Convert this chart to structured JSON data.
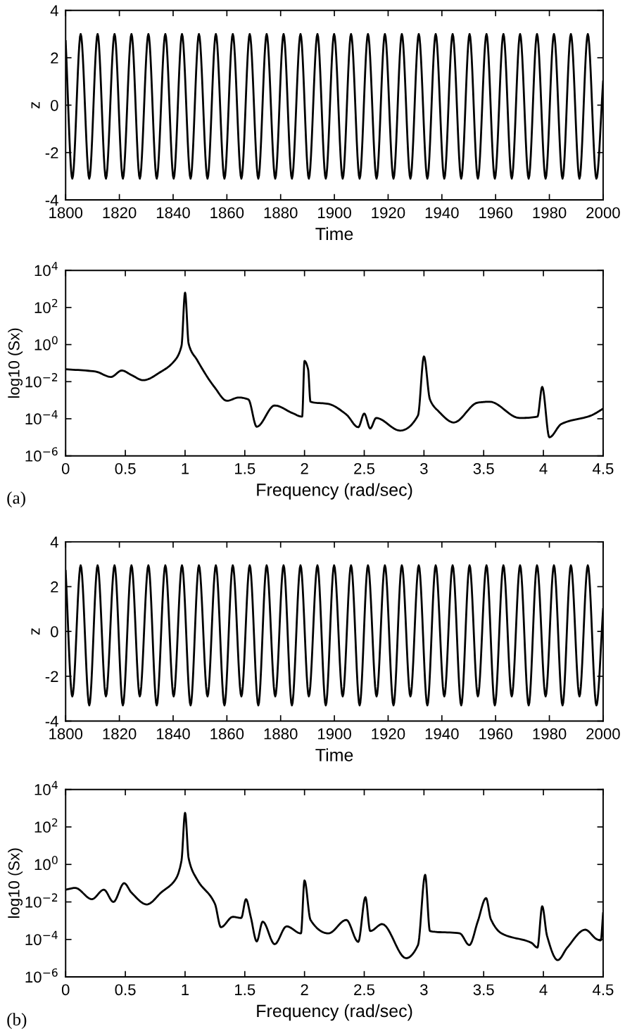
{
  "chart_data": [
    {
      "type": "line",
      "xlabel": "Time",
      "ylabel": "z",
      "xlim": [
        1800,
        2000
      ],
      "ylim": [
        -4,
        4
      ],
      "xticks": [
        1800,
        1820,
        1840,
        1860,
        1880,
        1900,
        1920,
        1940,
        1960,
        1980,
        2000
      ],
      "yticks": [
        -4,
        -2,
        0,
        2,
        4
      ],
      "grid": false,
      "x": [
        1800,
        1802.5,
        1805.6,
        1808.8,
        1811.9,
        1815.0,
        1818.2,
        1821.3,
        1824.5,
        1827.6,
        1830.8,
        1833.9,
        1837.1,
        1840.2,
        1843.3,
        1846.5,
        1849.6,
        1852.8,
        1855.9,
        1859.1,
        1862.2,
        1865.4,
        1868.5,
        1871.7,
        1874.8,
        1878.0,
        1881.1,
        1884.2,
        1887.4,
        1890.5,
        1893.7,
        1896.8,
        1899.9,
        1903.1,
        1906.2,
        1909.4,
        1912.5,
        1915.7,
        1918.8,
        1922.0,
        1925.1,
        1928.3,
        1931.4,
        1934.6,
        1937.7,
        1940.9,
        1944.0,
        1947.2,
        1950.3,
        1953.4,
        1956.6,
        1959.7,
        1962.9,
        1966.0,
        1969.1,
        1972.3,
        1975.4,
        1978.6,
        1981.7,
        1984.9,
        1988.0,
        1991.2,
        1994.3,
        1997.5,
        2000
      ],
      "series": [
        {
          "color": "#000000",
          "values": [
            2.7,
            -3.1,
            3.0,
            -3.1,
            3.0,
            -3.1,
            3.0,
            -3.1,
            3.0,
            -3.1,
            3.0,
            -3.1,
            3.0,
            -3.1,
            3.0,
            -3.1,
            3.0,
            -3.1,
            3.0,
            -3.1,
            3.0,
            -3.1,
            3.0,
            -3.1,
            3.0,
            -3.1,
            3.0,
            -3.1,
            3.0,
            -3.1,
            3.0,
            -3.1,
            3.0,
            -3.1,
            3.0,
            -3.1,
            3.0,
            -3.1,
            3.0,
            -3.1,
            3.0,
            -3.1,
            3.0,
            -3.1,
            3.0,
            -3.1,
            3.0,
            -3.1,
            3.0,
            -3.1,
            3.0,
            -3.1,
            3.0,
            -3.1,
            3.0,
            -3.1,
            3.0,
            -3.1,
            3.0,
            -3.1,
            3.0,
            -3.1,
            3.0,
            -3.1,
            1.0
          ]
        }
      ]
    },
    {
      "type": "line",
      "xlabel": "Frequency (rad/sec)",
      "ylabel": "log10 (Sx)",
      "log": "y",
      "xlim": [
        0,
        4.5
      ],
      "ylim": [
        1e-06,
        10000.0
      ],
      "xticks": [
        0,
        0.5,
        1,
        1.5,
        2,
        2.5,
        3,
        3.5,
        4,
        4.5
      ],
      "yticks": [
        {
          "value": 1e-06,
          "label": "10$^{−6}$"
        },
        {
          "value": 0.0001,
          "label": "10$^{−4}$"
        },
        {
          "value": 0.01,
          "label": "10$^{−2}$"
        },
        {
          "value": 1,
          "label": "10$^{0}$"
        },
        {
          "value": 100,
          "label": "10$^{2}$"
        },
        {
          "value": 10000,
          "label": "10$^{4}$"
        }
      ],
      "grid": false,
      "annotations": [
        "(a)"
      ],
      "x": [
        0,
        0.25,
        0.38,
        0.47,
        0.55,
        0.65,
        0.8,
        0.9,
        0.97,
        1.0,
        1.03,
        1.1,
        1.25,
        1.35,
        1.45,
        1.53,
        1.6,
        1.75,
        1.9,
        1.98,
        2.0,
        2.03,
        2.05,
        2.2,
        2.35,
        2.45,
        2.5,
        2.55,
        2.6,
        2.8,
        2.95,
        3.0,
        3.05,
        3.12,
        3.25,
        3.45,
        3.55,
        3.8,
        3.95,
        3.99,
        4.05,
        4.15,
        4.4,
        4.5
      ],
      "series": [
        {
          "color": "#000000",
          "values": [
            0.047,
            0.035,
            0.018,
            0.04,
            0.023,
            0.012,
            0.035,
            0.11,
            0.83,
            630,
            1.1,
            0.15,
            0.0047,
            0.00093,
            0.0014,
            0.0011,
            3.7e-05,
            0.00052,
            0.0002,
            0.00013,
            0.13,
            0.047,
            0.00083,
            0.00063,
            0.00017,
            3.5e-05,
            0.00019,
            3e-05,
            0.00011,
            2.3e-05,
            0.00015,
            0.23,
            0.0011,
            0.00026,
            6.3e-05,
            0.00074,
            0.00083,
            0.00011,
            0.00013,
            0.0052,
            1e-05,
            5.2e-05,
            0.00015,
            0.00035
          ]
        }
      ]
    },
    {
      "type": "line",
      "xlabel": "Time",
      "ylabel": "z",
      "xlim": [
        1800,
        2000
      ],
      "ylim": [
        -4,
        4
      ],
      "xticks": [
        1800,
        1820,
        1840,
        1860,
        1880,
        1900,
        1920,
        1940,
        1960,
        1980,
        2000
      ],
      "yticks": [
        -4,
        -2,
        0,
        2,
        4
      ],
      "grid": false,
      "x": [
        1800,
        1802.5,
        1805.6,
        1808.8,
        1811.9,
        1815.0,
        1818.2,
        1821.3,
        1824.5,
        1827.6,
        1830.8,
        1833.9,
        1837.1,
        1840.2,
        1843.3,
        1846.5,
        1849.6,
        1852.8,
        1855.9,
        1859.1,
        1862.2,
        1865.4,
        1868.5,
        1871.7,
        1874.8,
        1878.0,
        1881.1,
        1884.2,
        1887.4,
        1890.5,
        1893.7,
        1896.8,
        1899.9,
        1903.1,
        1906.2,
        1909.4,
        1912.5,
        1915.7,
        1918.8,
        1922.0,
        1925.1,
        1928.3,
        1931.4,
        1934.6,
        1937.7,
        1940.9,
        1944.0,
        1947.2,
        1950.3,
        1953.4,
        1956.6,
        1959.7,
        1962.9,
        1966.0,
        1969.1,
        1972.3,
        1975.4,
        1978.6,
        1981.7,
        1984.9,
        1988.0,
        1991.2,
        1994.3,
        1997.5,
        2000
      ],
      "series": [
        {
          "color": "#000000",
          "values": [
            2.7,
            -2.9,
            2.95,
            -3.3,
            2.95,
            -2.9,
            2.95,
            -3.3,
            2.95,
            -2.9,
            2.95,
            -3.3,
            2.95,
            -2.9,
            2.95,
            -3.3,
            2.95,
            -2.9,
            2.95,
            -3.3,
            2.95,
            -2.9,
            2.95,
            -3.3,
            2.95,
            -2.9,
            2.95,
            -3.3,
            2.95,
            -2.9,
            2.95,
            -3.3,
            2.95,
            -2.9,
            2.95,
            -3.3,
            2.95,
            -2.9,
            2.95,
            -3.3,
            2.95,
            -2.9,
            2.95,
            -3.3,
            2.95,
            -2.9,
            2.95,
            -3.3,
            2.95,
            -2.9,
            2.95,
            -3.3,
            2.95,
            -2.9,
            2.95,
            -3.3,
            2.95,
            -2.9,
            2.95,
            -3.3,
            2.95,
            -2.9,
            2.95,
            -3.3,
            1.0
          ]
        }
      ]
    },
    {
      "type": "line",
      "xlabel": "Frequency (rad/sec)",
      "ylabel": "log10 (Sx)",
      "log": "y",
      "xlim": [
        0,
        4.5
      ],
      "ylim": [
        1e-06,
        10000.0
      ],
      "xticks": [
        0,
        0.5,
        1,
        1.5,
        2,
        2.5,
        3,
        3.5,
        4,
        4.5
      ],
      "yticks": [
        {
          "value": 1e-06,
          "label": "10$^{−6}$"
        },
        {
          "value": 0.0001,
          "label": "10$^{−4}$"
        },
        {
          "value": 0.01,
          "label": "10$^{−2}$"
        },
        {
          "value": 1,
          "label": "10$^{0}$"
        },
        {
          "value": 100,
          "label": "10$^{2}$"
        },
        {
          "value": 10000,
          "label": "10$^{4}$"
        }
      ],
      "grid": false,
      "annotations": [
        "(b)"
      ],
      "x": [
        0,
        0.08,
        0.22,
        0.32,
        0.4,
        0.49,
        0.55,
        0.68,
        0.8,
        0.92,
        0.97,
        1.0,
        1.03,
        1.1,
        1.25,
        1.3,
        1.4,
        1.47,
        1.51,
        1.55,
        1.6,
        1.65,
        1.75,
        1.85,
        1.97,
        2.0,
        2.05,
        2.2,
        2.35,
        2.45,
        2.51,
        2.55,
        2.65,
        2.85,
        2.95,
        3.01,
        3.05,
        3.3,
        3.38,
        3.45,
        3.52,
        3.56,
        3.65,
        3.9,
        3.95,
        3.99,
        4.03,
        4.12,
        4.2,
        4.35,
        4.45,
        4.48,
        4.5
      ],
      "series": [
        {
          "color": "#000000",
          "values": [
            0.045,
            0.056,
            0.014,
            0.045,
            0.01,
            0.1,
            0.032,
            0.0074,
            0.032,
            0.16,
            1.6,
            560,
            2.1,
            0.16,
            0.0079,
            0.00045,
            0.0016,
            0.0014,
            0.014,
            0.0016,
            7.9e-05,
            0.00089,
            5.6e-05,
            0.0005,
            0.00021,
            0.14,
            0.0011,
            0.00021,
            0.0011,
            7.4e-05,
            0.018,
            0.00028,
            0.00066,
            1e-05,
            5e-05,
            0.28,
            0.00028,
            0.00021,
            5e-05,
            0.00089,
            0.016,
            0.0012,
            0.00021,
            6.6e-05,
            3.7e-05,
            0.0059,
            0.00016,
            7.9e-06,
            3.7e-05,
            0.00033,
            0.0001,
            8.9e-05,
            0.0025
          ]
        }
      ]
    }
  ]
}
